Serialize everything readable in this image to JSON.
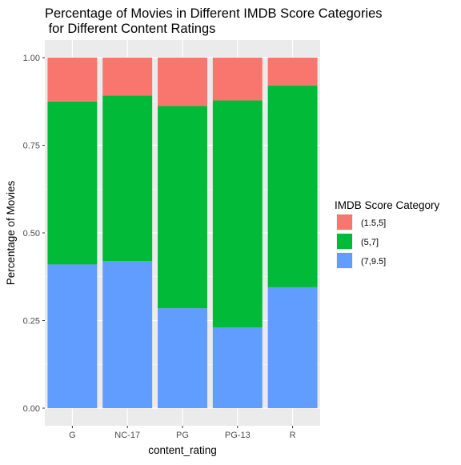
{
  "chart_data": {
    "type": "bar",
    "stacked": true,
    "title": "Percentage of Movies in Different IMDB Score Categories\n for Different Content Ratings",
    "xlabel": "content_rating",
    "ylabel": "Percentage of Movies",
    "categories": [
      "G",
      "NC-17",
      "PG",
      "PG-13",
      "R"
    ],
    "ylim": [
      0,
      1
    ],
    "yticks": [
      "0.00",
      "0.25",
      "0.50",
      "0.75",
      "1.00"
    ],
    "grid": true,
    "legend": {
      "title": "IMDB Score Category",
      "placement": "right"
    },
    "series": [
      {
        "name": "(7,9.5]",
        "color": "#619CFF",
        "values": [
          0.41,
          0.42,
          0.285,
          0.23,
          0.345
        ]
      },
      {
        "name": "(5,7]",
        "color": "#00BA38",
        "values": [
          0.465,
          0.472,
          0.577,
          0.648,
          0.575
        ]
      },
      {
        "name": "(1.5,5]",
        "color": "#F8766D",
        "values": [
          0.125,
          0.108,
          0.138,
          0.122,
          0.08
        ]
      }
    ],
    "legend_order": [
      "(1.5,5]",
      "(5,7]",
      "(7,9.5]"
    ],
    "panel_background": "#EBEBEB",
    "gridline_color": "#FFFFFF"
  }
}
